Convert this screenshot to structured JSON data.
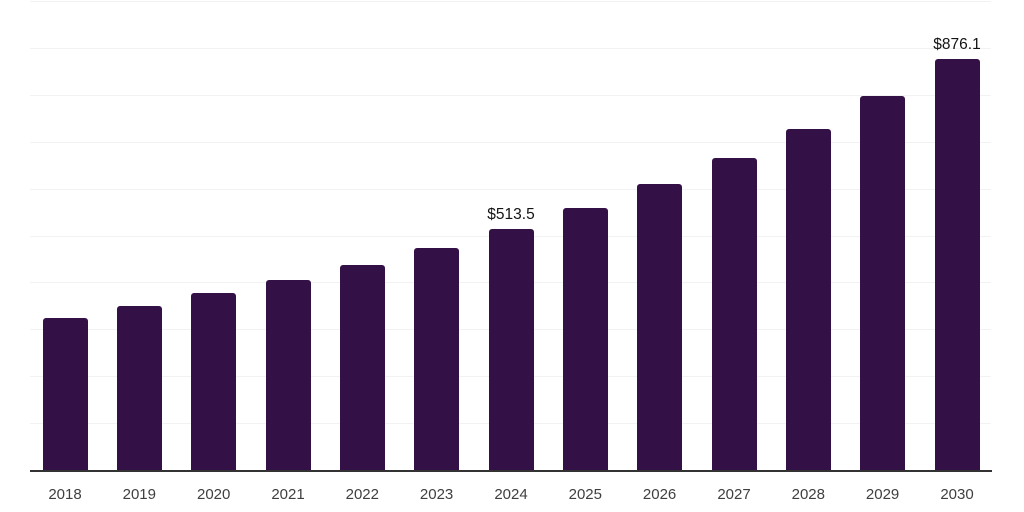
{
  "chart_data": {
    "type": "bar",
    "title": "",
    "xlabel": "",
    "ylabel": "",
    "categories": [
      "2018",
      "2019",
      "2020",
      "2021",
      "2022",
      "2023",
      "2024",
      "2025",
      "2026",
      "2027",
      "2028",
      "2029",
      "2030"
    ],
    "values": [
      324,
      350,
      377,
      405,
      437,
      473,
      513.5,
      558,
      610,
      665,
      727,
      797,
      876.1
    ],
    "point_labels": [
      {
        "category": "2024",
        "text": "$513.5"
      },
      {
        "category": "2030",
        "text": "$876.1"
      }
    ],
    "ylim": [
      0,
      1000
    ],
    "gridline_step": 100,
    "grid": true,
    "legend": false,
    "y_axis_labels_visible": false,
    "colors": {
      "bar": "#331146",
      "gridline": "#f2f2f2",
      "axis_line": "#333333",
      "x_tick_label": "#3f3f3f",
      "data_label": "#141414",
      "background": "#ffffff"
    }
  }
}
